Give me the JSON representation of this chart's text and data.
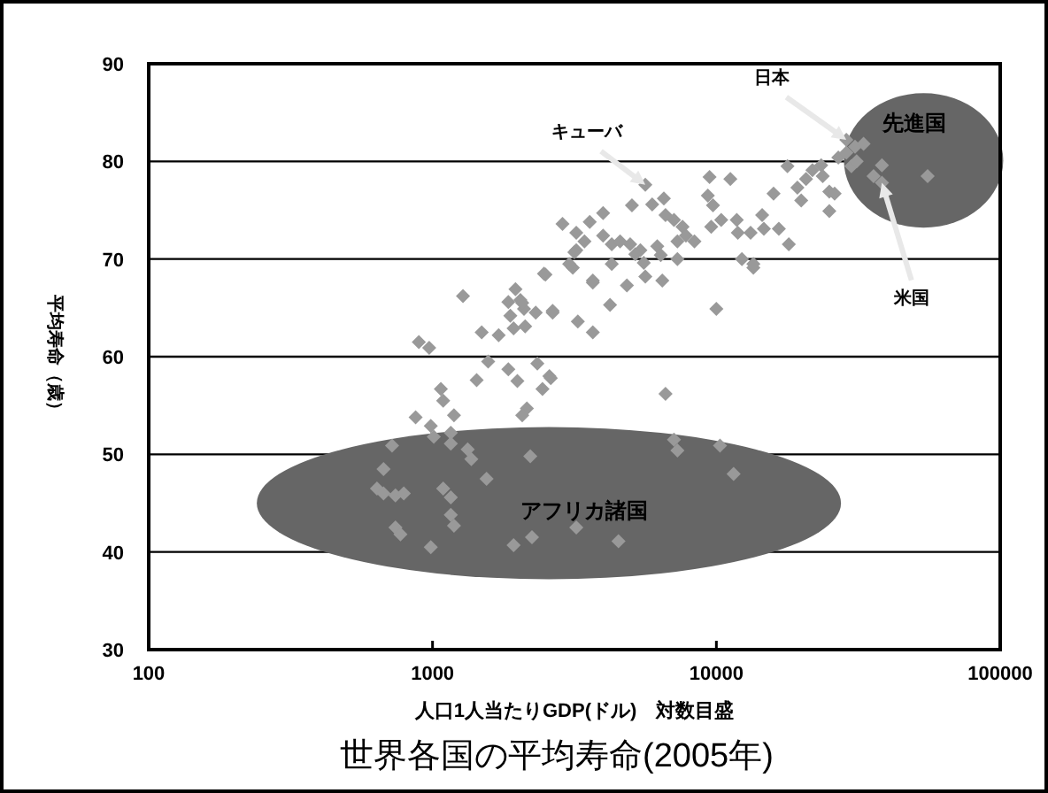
{
  "chart_data": {
    "type": "scatter",
    "title": "世界各国の平均寿命(2005年)",
    "xlabel": "人口1人当たりGDP(ドル)　対数目盛",
    "ylabel": "平均寿命（歳）",
    "log": "x",
    "xlim": [
      100,
      100000
    ],
    "xticks": [
      100,
      1000,
      10000,
      100000
    ],
    "ylim": [
      30,
      90
    ],
    "yticks": [
      30,
      40,
      50,
      60,
      70,
      80,
      90
    ],
    "grid": "y",
    "marker": "diamond",
    "series": [
      {
        "color": "#999999",
        "type": "scatter",
        "x": [
          2500,
          1280,
          1960,
          1850,
          2040,
          2100,
          2310,
          2650,
          1880,
          1930,
          2120,
          1490,
          1710,
          3250,
          895,
          973,
          1570,
          1850,
          2340,
          1990,
          2580,
          1430,
          2440,
          1070,
          1090,
          1190,
          872,
          986,
          2150,
          2070,
          1160,
          1010,
          1160,
          720,
          1330,
          1370,
          2210,
          672,
          1550,
          637,
          672,
          740,
          792,
          1090,
          1160,
          1160,
          1190,
          740,
          771,
          986,
          1930,
          2240,
          3210,
          3120,
          3670,
          4840,
          5620,
          6450,
          2070,
          2650,
          3670,
          4220,
          10000,
          13500,
          2610,
          6620,
          7090,
          7290,
          10300,
          11500,
          4520,
          5620,
          6530,
          5940,
          5040,
          3990,
          3580,
          2870,
          3210,
          3430,
          3990,
          4280,
          4580,
          4970,
          5400,
          6190,
          6620,
          7090,
          7600,
          7810,
          7290,
          8370,
          9460,
          11200,
          9330,
          9730,
          9590,
          10400,
          11800,
          11900,
          13200,
          14500,
          14700,
          16600,
          18000,
          15900,
          17800,
          19300,
          19900,
          20700,
          21800,
          23400,
          23700,
          25000,
          26100,
          25000,
          26900,
          28700,
          28700,
          30800,
          33000,
          29900,
          31200,
          38300,
          35800,
          38300,
          55500,
          2470,
          3030,
          3210,
          4280,
          5180,
          5550,
          6370,
          7290,
          12300,
          13500,
          3670,
          3160
        ],
        "values": [
          68.4,
          66.2,
          66.9,
          65.6,
          65.8,
          64.9,
          64.5,
          64.5,
          64.2,
          62.9,
          63.1,
          62.5,
          62.2,
          63.6,
          61.5,
          60.9,
          59.5,
          58.7,
          59.3,
          57.5,
          58.0,
          57.6,
          56.7,
          56.7,
          55.5,
          54.0,
          53.8,
          52.9,
          54.7,
          54.0,
          52.2,
          51.8,
          51.1,
          50.9,
          50.5,
          49.5,
          49.8,
          48.5,
          47.5,
          46.5,
          46.0,
          45.8,
          46.0,
          46.5,
          45.6,
          43.8,
          42.7,
          42.5,
          41.8,
          40.5,
          40.7,
          41.5,
          42.5,
          69.1,
          67.6,
          67.3,
          68.2,
          67.8,
          65.5,
          64.7,
          62.5,
          65.3,
          64.9,
          69.1,
          57.8,
          56.2,
          51.5,
          50.4,
          50.9,
          48.0,
          41.1,
          77.6,
          76.2,
          75.6,
          75.5,
          74.7,
          73.8,
          73.6,
          72.7,
          71.8,
          72.4,
          71.5,
          71.8,
          71.5,
          70.9,
          71.3,
          74.5,
          74.0,
          73.3,
          72.4,
          71.8,
          71.8,
          78.4,
          78.2,
          76.5,
          75.5,
          73.3,
          74.0,
          74.0,
          72.7,
          72.7,
          74.5,
          73.1,
          73.1,
          71.5,
          76.7,
          79.5,
          77.3,
          76.0,
          78.2,
          79.1,
          79.6,
          78.5,
          76.9,
          76.7,
          74.9,
          80.4,
          80.9,
          82.2,
          81.5,
          81.8,
          79.5,
          80.0,
          79.6,
          78.5,
          77.8,
          78.5,
          68.5,
          69.5,
          70.9,
          69.5,
          70.5,
          69.6,
          70.4,
          70.0,
          70.0,
          69.5,
          67.8,
          70.7
        ]
      }
    ],
    "annotations": [
      {
        "text": "キューバ",
        "x": 5620,
        "y": 77.6
      },
      {
        "text": "日本",
        "x": 28700,
        "y": 82.2
      },
      {
        "text": "米国",
        "x": 38300,
        "y": 77.8
      },
      "先進国",
      "アフリカ諸国"
    ]
  }
}
